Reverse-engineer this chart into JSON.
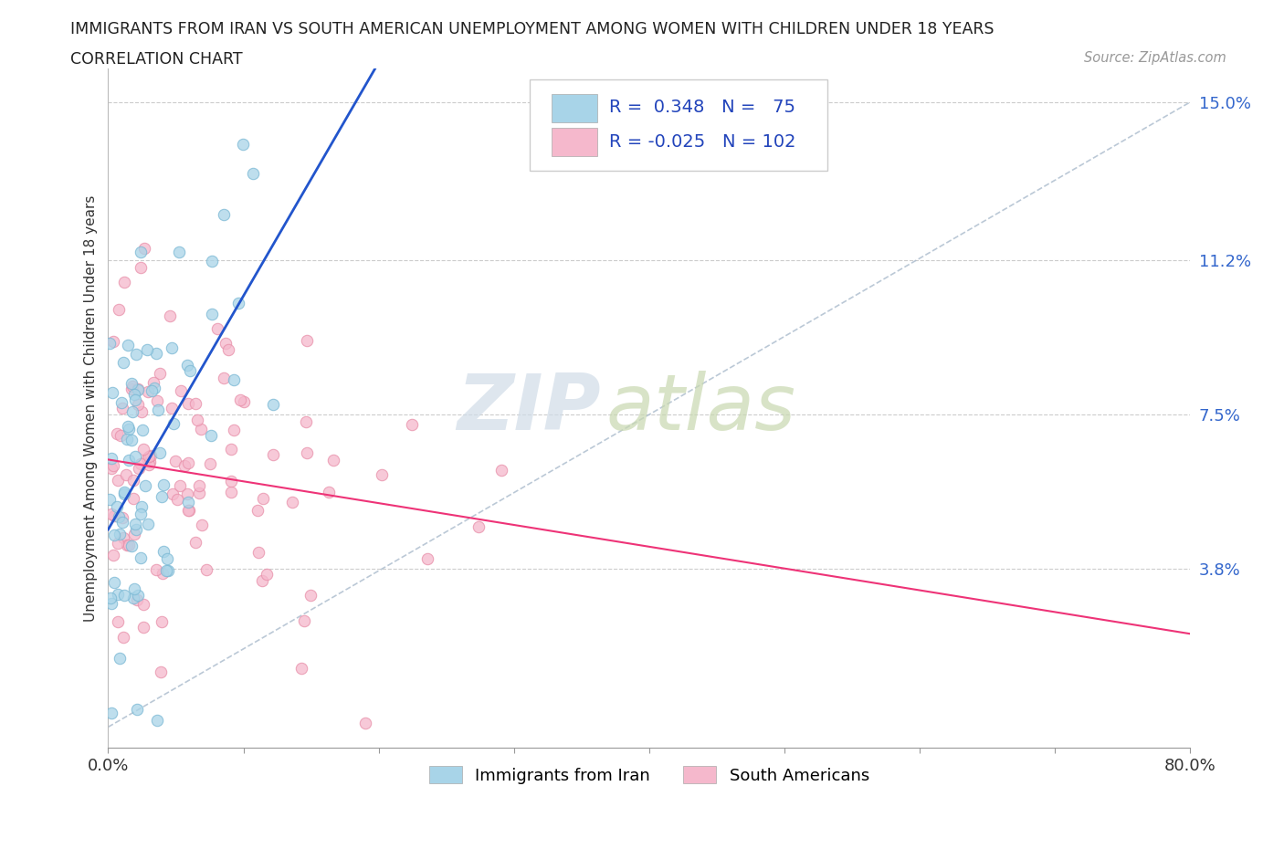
{
  "title_line1": "IMMIGRANTS FROM IRAN VS SOUTH AMERICAN UNEMPLOYMENT AMONG WOMEN WITH CHILDREN UNDER 18 YEARS",
  "title_line2": "CORRELATION CHART",
  "source_text": "Source: ZipAtlas.com",
  "ylabel": "Unemployment Among Women with Children Under 18 years",
  "xlim": [
    0.0,
    0.8
  ],
  "ylim": [
    -0.005,
    0.158
  ],
  "yticks": [
    0.038,
    0.075,
    0.112,
    0.15
  ],
  "ytick_labels": [
    "3.8%",
    "7.5%",
    "11.2%",
    "15.0%"
  ],
  "xticks": [
    0.0,
    0.1,
    0.2,
    0.3,
    0.4,
    0.5,
    0.6,
    0.7,
    0.8
  ],
  "xtick_labels": [
    "0.0%",
    "",
    "",
    "",
    "",
    "",
    "",
    "",
    "80.0%"
  ],
  "iran_color": "#a8d4e8",
  "iran_edge_color": "#7ab8d4",
  "south_color": "#f5b8cc",
  "south_edge_color": "#e890aa",
  "iran_line_color": "#2255cc",
  "south_line_color": "#ee3377",
  "diag_line_color": "#aabbcc",
  "iran_R": 0.348,
  "iran_N": 75,
  "south_R": -0.025,
  "south_N": 102,
  "watermark_zip": "ZIP",
  "watermark_atlas": "atlas",
  "background_color": "#ffffff",
  "grid_color": "#cccccc",
  "legend_label_iran": "Immigrants from Iran",
  "legend_label_south": "South Americans"
}
